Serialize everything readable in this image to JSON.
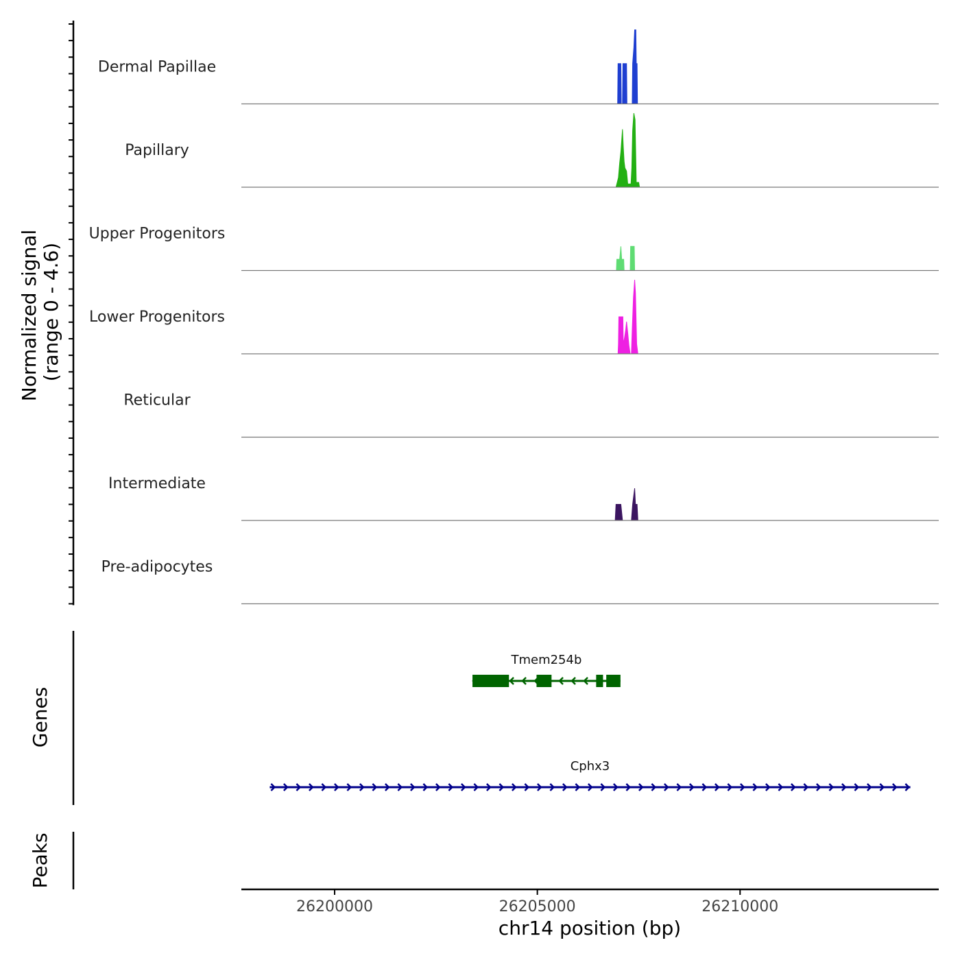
{
  "chart_data": {
    "type": "area",
    "title": "",
    "ylabel": "Normalized signal",
    "ylabel_range": "(range 0 - 4.6)",
    "xlabel": "chr14 position (bp)",
    "xlim": [
      26197700,
      26214900
    ],
    "ylim": [
      0,
      4.6
    ],
    "x_ticks": [
      26200000,
      26205000,
      26210000
    ],
    "x_tick_labels": [
      "26200000",
      "26205000",
      "26210000"
    ],
    "series": [
      {
        "name": "Dermal Papillae",
        "color": "#1f3fd1",
        "points": [
          [
            26206980,
            0
          ],
          [
            26206990,
            2.5
          ],
          [
            26207060,
            2.5
          ],
          [
            26207070,
            0
          ],
          [
            26207100,
            0
          ],
          [
            26207110,
            2.5
          ],
          [
            26207200,
            2.5
          ],
          [
            26207210,
            0
          ],
          [
            26207340,
            0
          ],
          [
            26207350,
            2.5
          ],
          [
            26207380,
            3.5
          ],
          [
            26207400,
            4.6
          ],
          [
            26207430,
            4.6
          ],
          [
            26207440,
            2.5
          ],
          [
            26207460,
            2.5
          ],
          [
            26207470,
            0
          ]
        ]
      },
      {
        "name": "Papillary",
        "color": "#23b013",
        "points": [
          [
            26206940,
            0
          ],
          [
            26206970,
            0.3
          ],
          [
            26207000,
            0.6
          ],
          [
            26207030,
            1.5
          ],
          [
            26207060,
            2.2
          ],
          [
            26207080,
            2.9
          ],
          [
            26207100,
            3.6
          ],
          [
            26207120,
            2.5
          ],
          [
            26207140,
            1.6
          ],
          [
            26207160,
            1.2
          ],
          [
            26207200,
            1.0
          ],
          [
            26207230,
            0.2
          ],
          [
            26207310,
            0.2
          ],
          [
            26207330,
            1.2
          ],
          [
            26207350,
            3.5
          ],
          [
            26207380,
            4.6
          ],
          [
            26207410,
            4.2
          ],
          [
            26207440,
            0.3
          ],
          [
            26207500,
            0.3
          ],
          [
            26207520,
            0
          ]
        ]
      },
      {
        "name": "Upper Progenitors",
        "color": "#5fdc73",
        "points": [
          [
            26206950,
            0
          ],
          [
            26206960,
            0.7
          ],
          [
            26207030,
            0.7
          ],
          [
            26207060,
            1.5
          ],
          [
            26207080,
            0.7
          ],
          [
            26207130,
            0.7
          ],
          [
            26207140,
            0
          ],
          [
            26207290,
            0
          ],
          [
            26207300,
            1.5
          ],
          [
            26207390,
            1.5
          ],
          [
            26207400,
            0
          ]
        ]
      },
      {
        "name": "Lower Progenitors",
        "color": "#ee20e2",
        "points": [
          [
            26206990,
            0
          ],
          [
            26207000,
            0.6
          ],
          [
            26207010,
            2.3
          ],
          [
            26207110,
            2.3
          ],
          [
            26207120,
            0.6
          ],
          [
            26207150,
            1.0
          ],
          [
            26207180,
            1.5
          ],
          [
            26207200,
            2.0
          ],
          [
            26207230,
            1.3
          ],
          [
            26207260,
            0.5
          ],
          [
            26207290,
            0
          ],
          [
            26207320,
            0
          ],
          [
            26207340,
            1.5
          ],
          [
            26207370,
            3.5
          ],
          [
            26207400,
            4.6
          ],
          [
            26207420,
            3.8
          ],
          [
            26207450,
            0.6
          ],
          [
            26207480,
            0
          ]
        ]
      },
      {
        "name": "Reticular",
        "color": "#4a1a70",
        "points": []
      },
      {
        "name": "Intermediate",
        "color": "#3b1560",
        "points": [
          [
            26206920,
            0
          ],
          [
            26206940,
            1.0
          ],
          [
            26207060,
            1.0
          ],
          [
            26207100,
            0
          ],
          [
            26207320,
            0
          ],
          [
            26207350,
            1.0
          ],
          [
            26207400,
            2.0
          ],
          [
            26207420,
            1.0
          ],
          [
            26207460,
            1.0
          ],
          [
            26207480,
            0
          ]
        ]
      },
      {
        "name": "Pre-adipocytes",
        "color": "#3b1560",
        "points": []
      }
    ],
    "genes_label": "Genes",
    "peaks_label": "Peaks",
    "genes": [
      {
        "name": "Tmem254b",
        "strand": "-",
        "color": "#006400",
        "start": 26203400,
        "end": 26207050,
        "exons": [
          [
            26203400,
            26204300
          ],
          [
            26204980,
            26205350
          ],
          [
            26206450,
            26206620
          ],
          [
            26206700,
            26207050
          ]
        ],
        "row": 1
      },
      {
        "name": "Cphx3",
        "strand": "+",
        "color": "#00008b",
        "start": 26198400,
        "end": 26214200,
        "exons": [],
        "row": 2
      }
    ],
    "peaks": []
  }
}
